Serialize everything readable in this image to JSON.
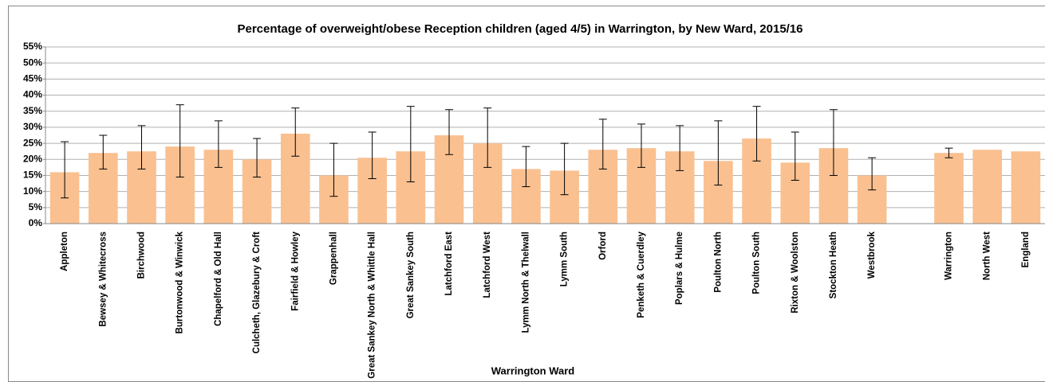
{
  "chart_data": {
    "type": "bar",
    "title": "Percentage of overweight/obese Reception children (aged 4/5) in Warrington, by New Ward, 2015/16",
    "x_label": "Warrington Ward",
    "categories": [
      "Appleton",
      "Bewsey & Whitecross",
      "Birchwood",
      "Burtonwood & Winwick",
      "Chapelford & Old Hall",
      "Culcheth, Glazebury & Croft",
      "Fairfield & Howley",
      "Grappenhall",
      "Great Sankey North & Whittle Hall",
      "Great Sankey South",
      "Latchford East",
      "Latchford West",
      "Lymm North & Thelwall",
      "Lymm South",
      "Orford",
      "Penketh & Cuerdley",
      "Poplars & Hulme",
      "Poulton North",
      "Poulton South",
      "Rixton & Woolston",
      "Stockton Heath",
      "Westbrook",
      null,
      "Warrington",
      "North West",
      "England"
    ],
    "values": [
      16,
      22,
      22.5,
      24,
      23,
      20,
      28,
      15,
      20.5,
      22.5,
      27.5,
      25,
      17,
      16.5,
      23,
      23.5,
      22.5,
      19.5,
      26.5,
      19,
      23.5,
      15,
      null,
      22,
      23,
      22.5
    ],
    "lower": [
      8,
      17,
      17,
      14.5,
      17.5,
      14.5,
      21,
      8.5,
      14,
      13,
      21.5,
      17.5,
      11.5,
      9,
      17,
      17.5,
      16.5,
      12,
      19.5,
      13.5,
      15,
      10.5,
      null,
      20.5,
      null,
      null
    ],
    "upper": [
      25.5,
      27.5,
      30.5,
      37,
      32,
      26.5,
      36,
      25,
      28.5,
      36.5,
      35.5,
      36,
      24,
      25,
      32.5,
      31,
      30.5,
      32,
      36.5,
      28.5,
      35.5,
      20.5,
      null,
      23.5,
      null,
      null
    ],
    "color": "#fac090",
    "ylim": [
      0,
      55
    ],
    "yticks": [
      {
        "value": 0,
        "label": "0%"
      },
      {
        "value": 5,
        "label": "5%"
      },
      {
        "value": 10,
        "label": "10%"
      },
      {
        "value": 15,
        "label": "15%"
      },
      {
        "value": 20,
        "label": "20%"
      },
      {
        "value": 25,
        "label": "25%"
      },
      {
        "value": 30,
        "label": "30%"
      },
      {
        "value": 35,
        "label": "35%"
      },
      {
        "value": 40,
        "label": "40%"
      },
      {
        "value": 45,
        "label": "45%"
      },
      {
        "value": 50,
        "label": "50%"
      },
      {
        "value": 55,
        "label": "55%"
      }
    ],
    "grid": true
  }
}
